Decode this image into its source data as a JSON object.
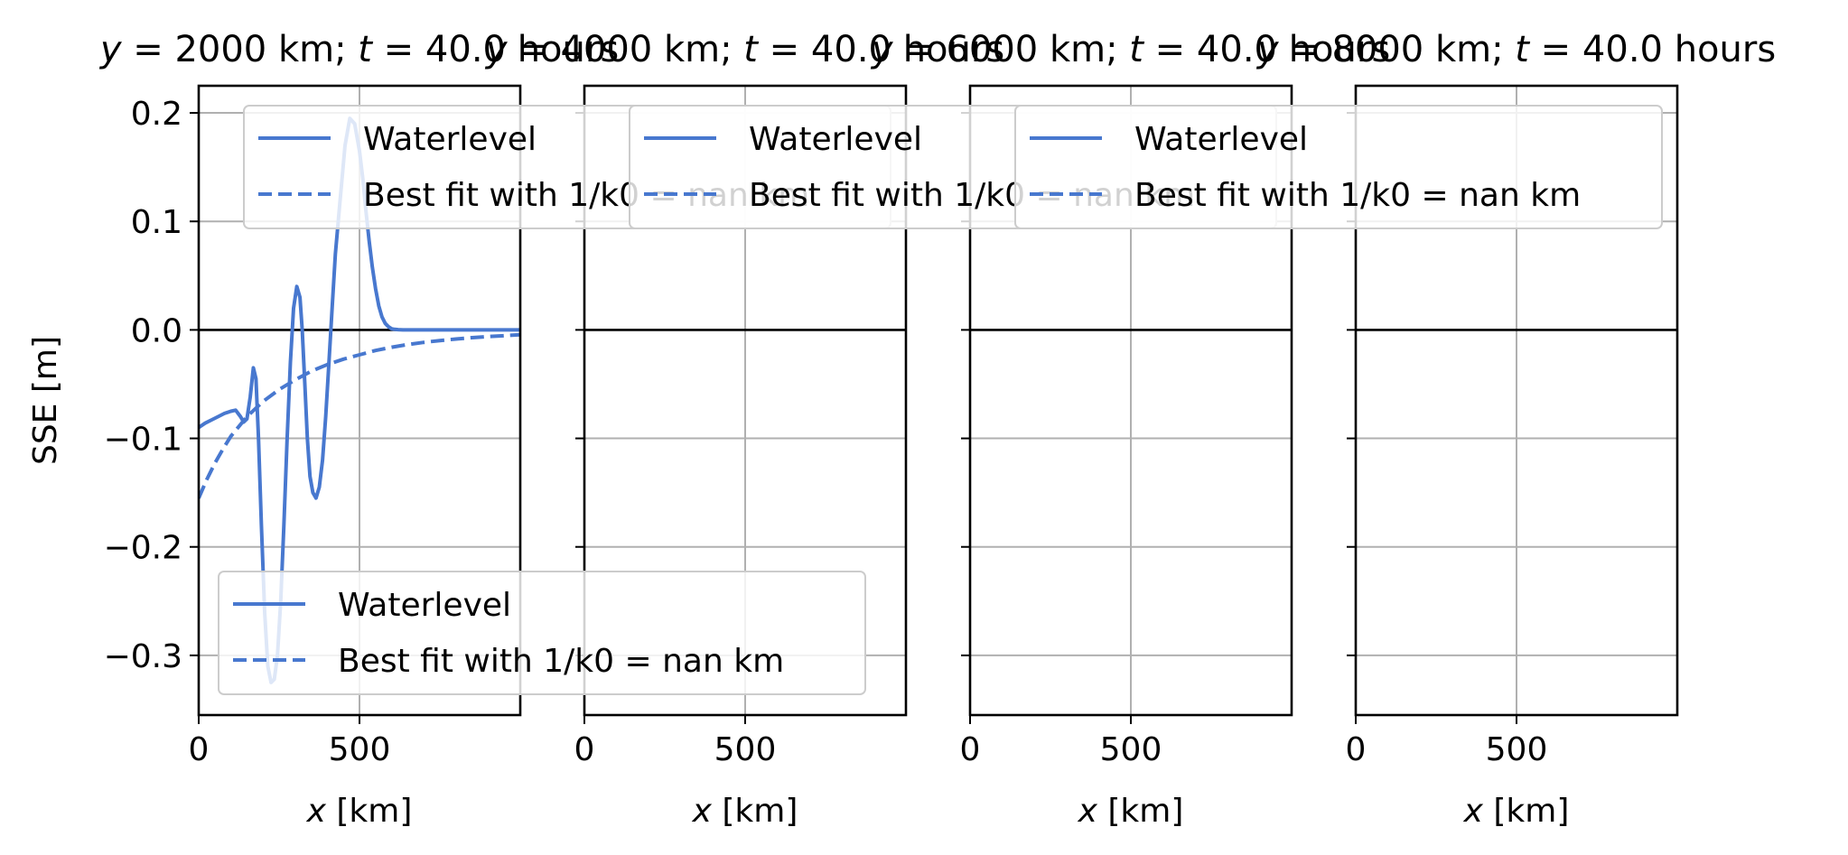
{
  "chart_data": [
    {
      "type": "line",
      "title_parts": [
        "y",
        " = 2000 km; ",
        "t",
        " = 40.0 hours"
      ],
      "xlabel_parts": [
        "x",
        " [km]"
      ],
      "ylabel": "SSE [m]",
      "xlim": [
        0,
        1000
      ],
      "ylim": [
        -0.355,
        0.225
      ],
      "xticks": [
        0,
        500
      ],
      "yticks": [
        -0.3,
        -0.2,
        -0.1,
        0.0,
        0.1,
        0.2
      ],
      "ytick_labels": [
        "−0.3",
        "−0.2",
        "−0.1",
        "0.0",
        "0.1",
        "0.2"
      ],
      "series": [
        {
          "name": "Waterlevel",
          "style": "solid",
          "x": [
            0,
            20,
            40,
            60,
            80,
            100,
            115,
            130,
            140,
            150,
            160,
            170,
            178,
            186,
            195,
            205,
            215,
            225,
            235,
            245,
            255,
            265,
            275,
            285,
            295,
            305,
            315,
            322,
            330,
            338,
            346,
            355,
            365,
            375,
            385,
            395,
            405,
            415,
            425,
            440,
            455,
            470,
            485,
            500,
            510,
            520,
            530,
            540,
            550,
            560,
            570,
            580,
            590,
            600,
            610,
            620,
            635,
            650,
            670,
            700,
            750,
            800,
            900,
            1000
          ],
          "y": [
            -0.09,
            -0.086,
            -0.083,
            -0.08,
            -0.077,
            -0.075,
            -0.074,
            -0.08,
            -0.085,
            -0.082,
            -0.062,
            -0.035,
            -0.045,
            -0.1,
            -0.18,
            -0.26,
            -0.31,
            -0.325,
            -0.322,
            -0.3,
            -0.25,
            -0.18,
            -0.1,
            -0.03,
            0.02,
            0.04,
            0.03,
            0.0,
            -0.05,
            -0.1,
            -0.135,
            -0.15,
            -0.155,
            -0.145,
            -0.12,
            -0.08,
            -0.03,
            0.02,
            0.07,
            0.12,
            0.17,
            0.195,
            0.19,
            0.165,
            0.14,
            0.11,
            0.082,
            0.058,
            0.038,
            0.022,
            0.012,
            0.006,
            0.003,
            0.001,
            0.0005,
            0.0002,
            0.0,
            0.0,
            0.0,
            0.0,
            0.0,
            0.0,
            0.0,
            0.0
          ]
        },
        {
          "name": "Best fit with 1/k0 = nan km",
          "style": "dashed",
          "x": [
            0,
            25,
            50,
            75,
            100,
            150,
            200,
            250,
            300,
            350,
            400,
            450,
            500,
            550,
            600,
            650,
            700,
            750,
            800,
            850,
            900,
            950,
            1000
          ],
          "y": [
            -0.155,
            -0.138,
            -0.123,
            -0.11,
            -0.098,
            -0.08,
            -0.066,
            -0.055,
            -0.046,
            -0.038,
            -0.032,
            -0.027,
            -0.023,
            -0.019,
            -0.016,
            -0.0135,
            -0.0115,
            -0.0098,
            -0.0084,
            -0.0072,
            -0.0062,
            -0.0053,
            -0.0045
          ]
        }
      ],
      "hline_y": 0.0,
      "grid": true,
      "legends": [
        {
          "placement": "upper-right",
          "entries": [
            {
              "style": "solid",
              "text": "Waterlevel"
            },
            {
              "style": "dashed",
              "text_parts": [
                "Best fit with 1/",
                "k",
                "0 = ",
                "nan",
                " km"
              ]
            }
          ]
        },
        {
          "placement": "lower-right",
          "entries": [
            {
              "style": "solid",
              "text": "Waterlevel"
            },
            {
              "style": "dashed",
              "text_parts": [
                "Best fit with 1/",
                "k",
                "0 = ",
                "nan",
                " km"
              ]
            }
          ]
        }
      ],
      "show_ylabel": true,
      "show_yticklabels": true
    },
    {
      "type": "line",
      "title_parts": [
        "y",
        " = 4000 km; ",
        "t",
        " = 40.0 hours"
      ],
      "xlabel_parts": [
        "x",
        " [km]"
      ],
      "xlim": [
        0,
        1000
      ],
      "ylim": [
        -0.355,
        0.225
      ],
      "xticks": [
        0,
        500
      ],
      "yticks": [
        -0.3,
        -0.2,
        -0.1,
        0.0,
        0.1,
        0.2
      ],
      "series": [],
      "hline_y": 0.0,
      "grid": true,
      "legends": [
        {
          "placement": "upper-right",
          "entries": [
            {
              "style": "solid",
              "text": "Waterlevel"
            },
            {
              "style": "dashed",
              "text_parts": [
                "Best fit with 1/",
                "k",
                "0 = ",
                "nan",
                " km"
              ]
            }
          ]
        }
      ],
      "show_ylabel": false,
      "show_yticklabels": false
    },
    {
      "type": "line",
      "title_parts": [
        "y",
        " = 6000 km; ",
        "t",
        " = 40.0 hours"
      ],
      "xlabel_parts": [
        "x",
        " [km]"
      ],
      "xlim": [
        0,
        1000
      ],
      "ylim": [
        -0.355,
        0.225
      ],
      "xticks": [
        0,
        500
      ],
      "yticks": [
        -0.3,
        -0.2,
        -0.1,
        0.0,
        0.1,
        0.2
      ],
      "series": [],
      "hline_y": 0.0,
      "grid": true,
      "legends": [
        {
          "placement": "upper-right",
          "entries": [
            {
              "style": "solid",
              "text": "Waterlevel"
            },
            {
              "style": "dashed",
              "text_parts": [
                "Best fit with 1/",
                "k",
                "0 = ",
                "nan",
                " km"
              ]
            }
          ]
        }
      ],
      "show_ylabel": false,
      "show_yticklabels": false
    },
    {
      "type": "line",
      "title_parts": [
        "y",
        " = 8000 km; ",
        "t",
        " = 40.0 hours"
      ],
      "xlabel_parts": [
        "x",
        " [km]"
      ],
      "xlim": [
        0,
        1000
      ],
      "ylim": [
        -0.355,
        0.225
      ],
      "xticks": [
        0,
        500
      ],
      "yticks": [
        -0.3,
        -0.2,
        -0.1,
        0.0,
        0.1,
        0.2
      ],
      "series": [],
      "hline_y": 0.0,
      "grid": true,
      "legends": [],
      "show_ylabel": false,
      "show_yticklabels": false
    }
  ],
  "colors": {
    "series": "#4878cf",
    "grid": "#b0b0b0",
    "axis": "#000000",
    "legend_border": "#cccccc"
  }
}
